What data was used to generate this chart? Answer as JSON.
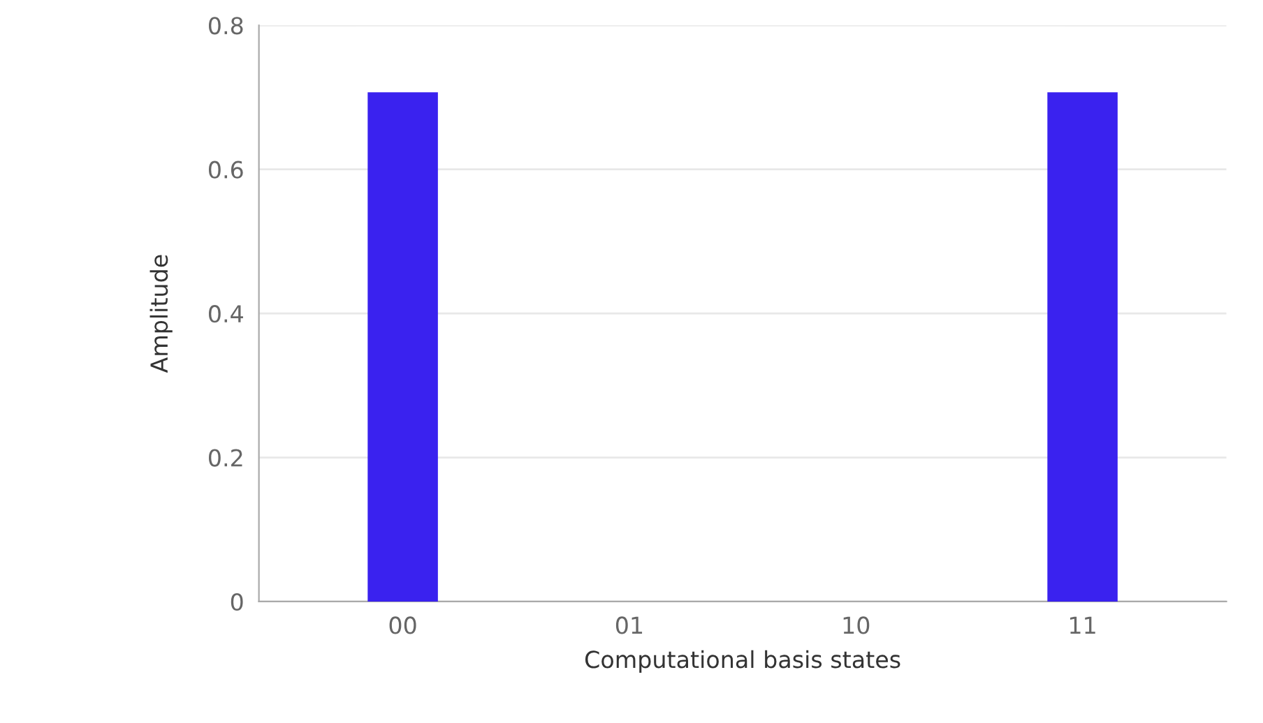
{
  "chart_data": {
    "type": "bar",
    "xlabel": "Computational basis states",
    "ylabel": "Amplitude",
    "categories": [
      "00",
      "01",
      "10",
      "11"
    ],
    "values": [
      0.707,
      0,
      0,
      0.707
    ],
    "color": "#3a22ef",
    "ylim": [
      0,
      0.8
    ],
    "yticks": [
      0,
      0.2,
      0.4,
      0.6,
      0.8
    ],
    "grid": "y",
    "legend": false
  }
}
